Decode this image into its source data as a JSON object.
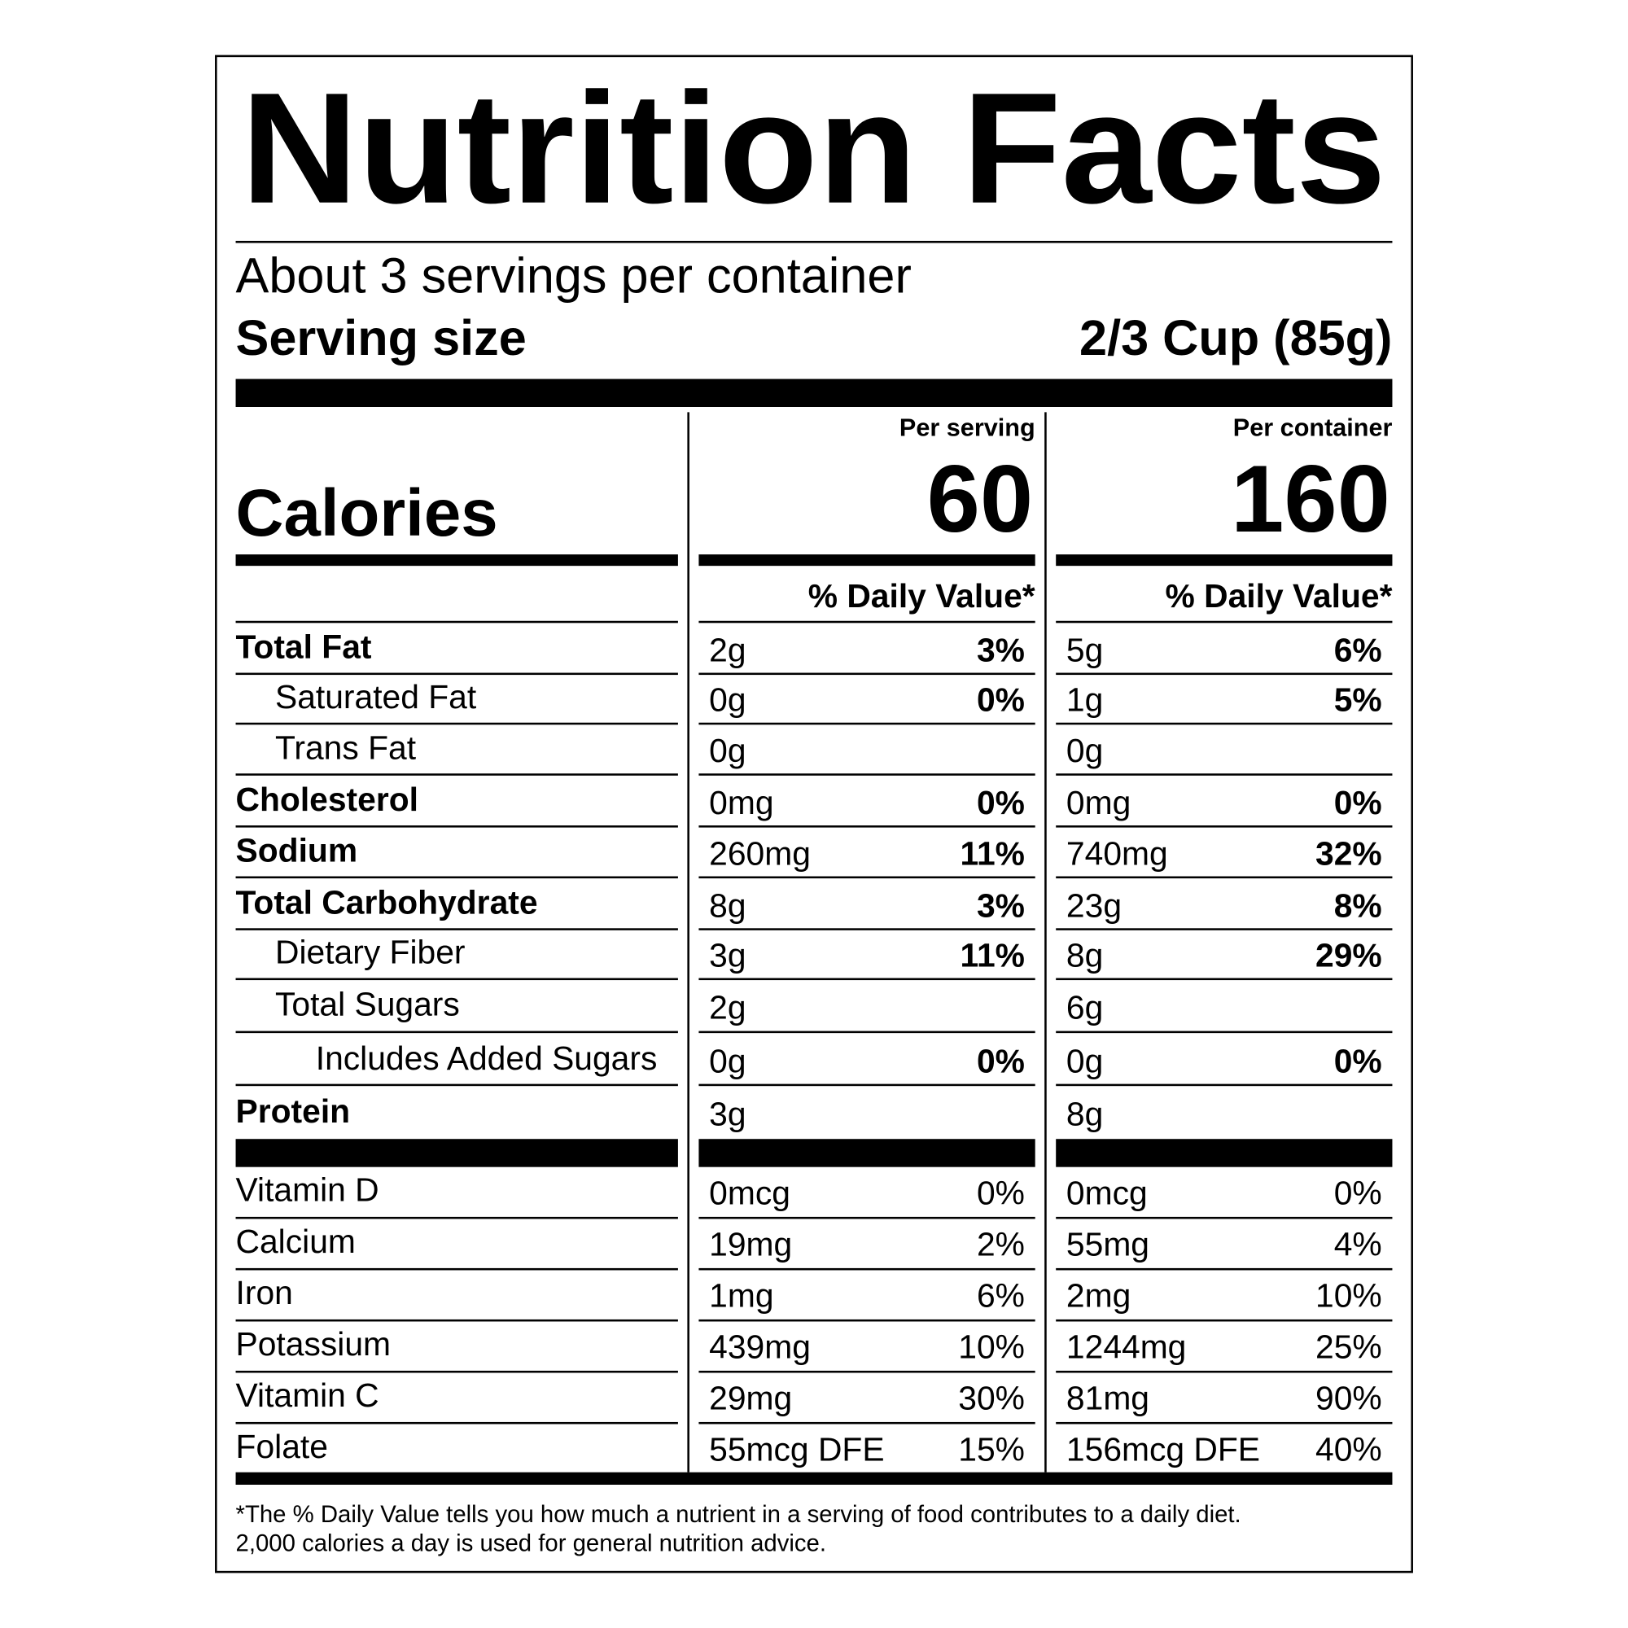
{
  "title": "Nutrition Facts",
  "servings": "About 3 servings per container",
  "serving_size": {
    "label": "Serving size",
    "value": "2/3 Cup (85g)"
  },
  "calories": {
    "label": "Calories",
    "per_serving": {
      "header": "Per serving",
      "value": "60"
    },
    "per_container": {
      "header": "Per container",
      "value": "160"
    }
  },
  "dv_header": [
    "% Daily Value*",
    "% Daily Value*"
  ],
  "nutrients": [
    {
      "name": "Total Fat",
      "bold": true,
      "indent": 0,
      "serving": [
        "2g",
        "3%"
      ],
      "container": [
        "5g",
        "6%"
      ]
    },
    {
      "name": "Saturated Fat",
      "bold": false,
      "indent": 1,
      "serving": [
        "0g",
        "0%"
      ],
      "container": [
        "1g",
        "5%"
      ]
    },
    {
      "name": "Trans Fat",
      "bold": false,
      "indent": 1,
      "serving": [
        "0g",
        null
      ],
      "container": [
        "0g",
        null
      ]
    },
    {
      "name": "Cholesterol",
      "bold": true,
      "indent": 0,
      "serving": [
        "0mg",
        "0%"
      ],
      "container": [
        "0mg",
        "0%"
      ]
    },
    {
      "name": "Sodium",
      "bold": true,
      "indent": 0,
      "serving": [
        "260mg",
        "11%"
      ],
      "container": [
        "740mg",
        "32%"
      ]
    },
    {
      "name": "Total Carbohydrate",
      "bold": true,
      "indent": 0,
      "serving": [
        "8g",
        "3%"
      ],
      "container": [
        "23g",
        "8%"
      ]
    },
    {
      "name": "Dietary Fiber",
      "bold": false,
      "indent": 1,
      "serving": [
        "3g",
        "11%"
      ],
      "container": [
        "8g",
        "29%"
      ]
    },
    {
      "name": "Total Sugars",
      "bold": false,
      "indent": 1,
      "serving": [
        "2g",
        null
      ],
      "container": [
        "6g",
        null
      ]
    },
    {
      "name": "Includes Added Sugars",
      "bold": false,
      "indent": 2,
      "serving": [
        "0g",
        "0%"
      ],
      "container": [
        "0g",
        "0%"
      ]
    },
    {
      "name": "Protein",
      "bold": true,
      "indent": 0,
      "serving": [
        "3g",
        null
      ],
      "container": [
        "8g",
        null
      ]
    }
  ],
  "vitamins": [
    {
      "name": "Vitamin D",
      "serving": [
        "0mcg",
        "0%"
      ],
      "container": [
        "0mcg",
        "0%"
      ]
    },
    {
      "name": "Calcium",
      "serving": [
        "19mg",
        "2%"
      ],
      "container": [
        "55mg",
        "4%"
      ]
    },
    {
      "name": "Iron",
      "serving": [
        "1mg",
        "6%"
      ],
      "container": [
        "2mg",
        "10%"
      ]
    },
    {
      "name": "Potassium",
      "serving": [
        "439mg",
        "10%"
      ],
      "container": [
        "1244mg",
        "25%"
      ]
    },
    {
      "name": "Vitamin C",
      "serving": [
        "29mg",
        "30%"
      ],
      "container": [
        "81mg",
        "90%"
      ]
    },
    {
      "name": "Folate",
      "serving": [
        "55mcg DFE",
        "15%"
      ],
      "container": [
        "156mcg DFE",
        "40%"
      ]
    }
  ],
  "footnote": [
    "*The % Daily Value tells you how much a nutrient in a serving of food contributes to a daily diet.",
    "2,000 calories a day is used for general nutrition advice."
  ]
}
